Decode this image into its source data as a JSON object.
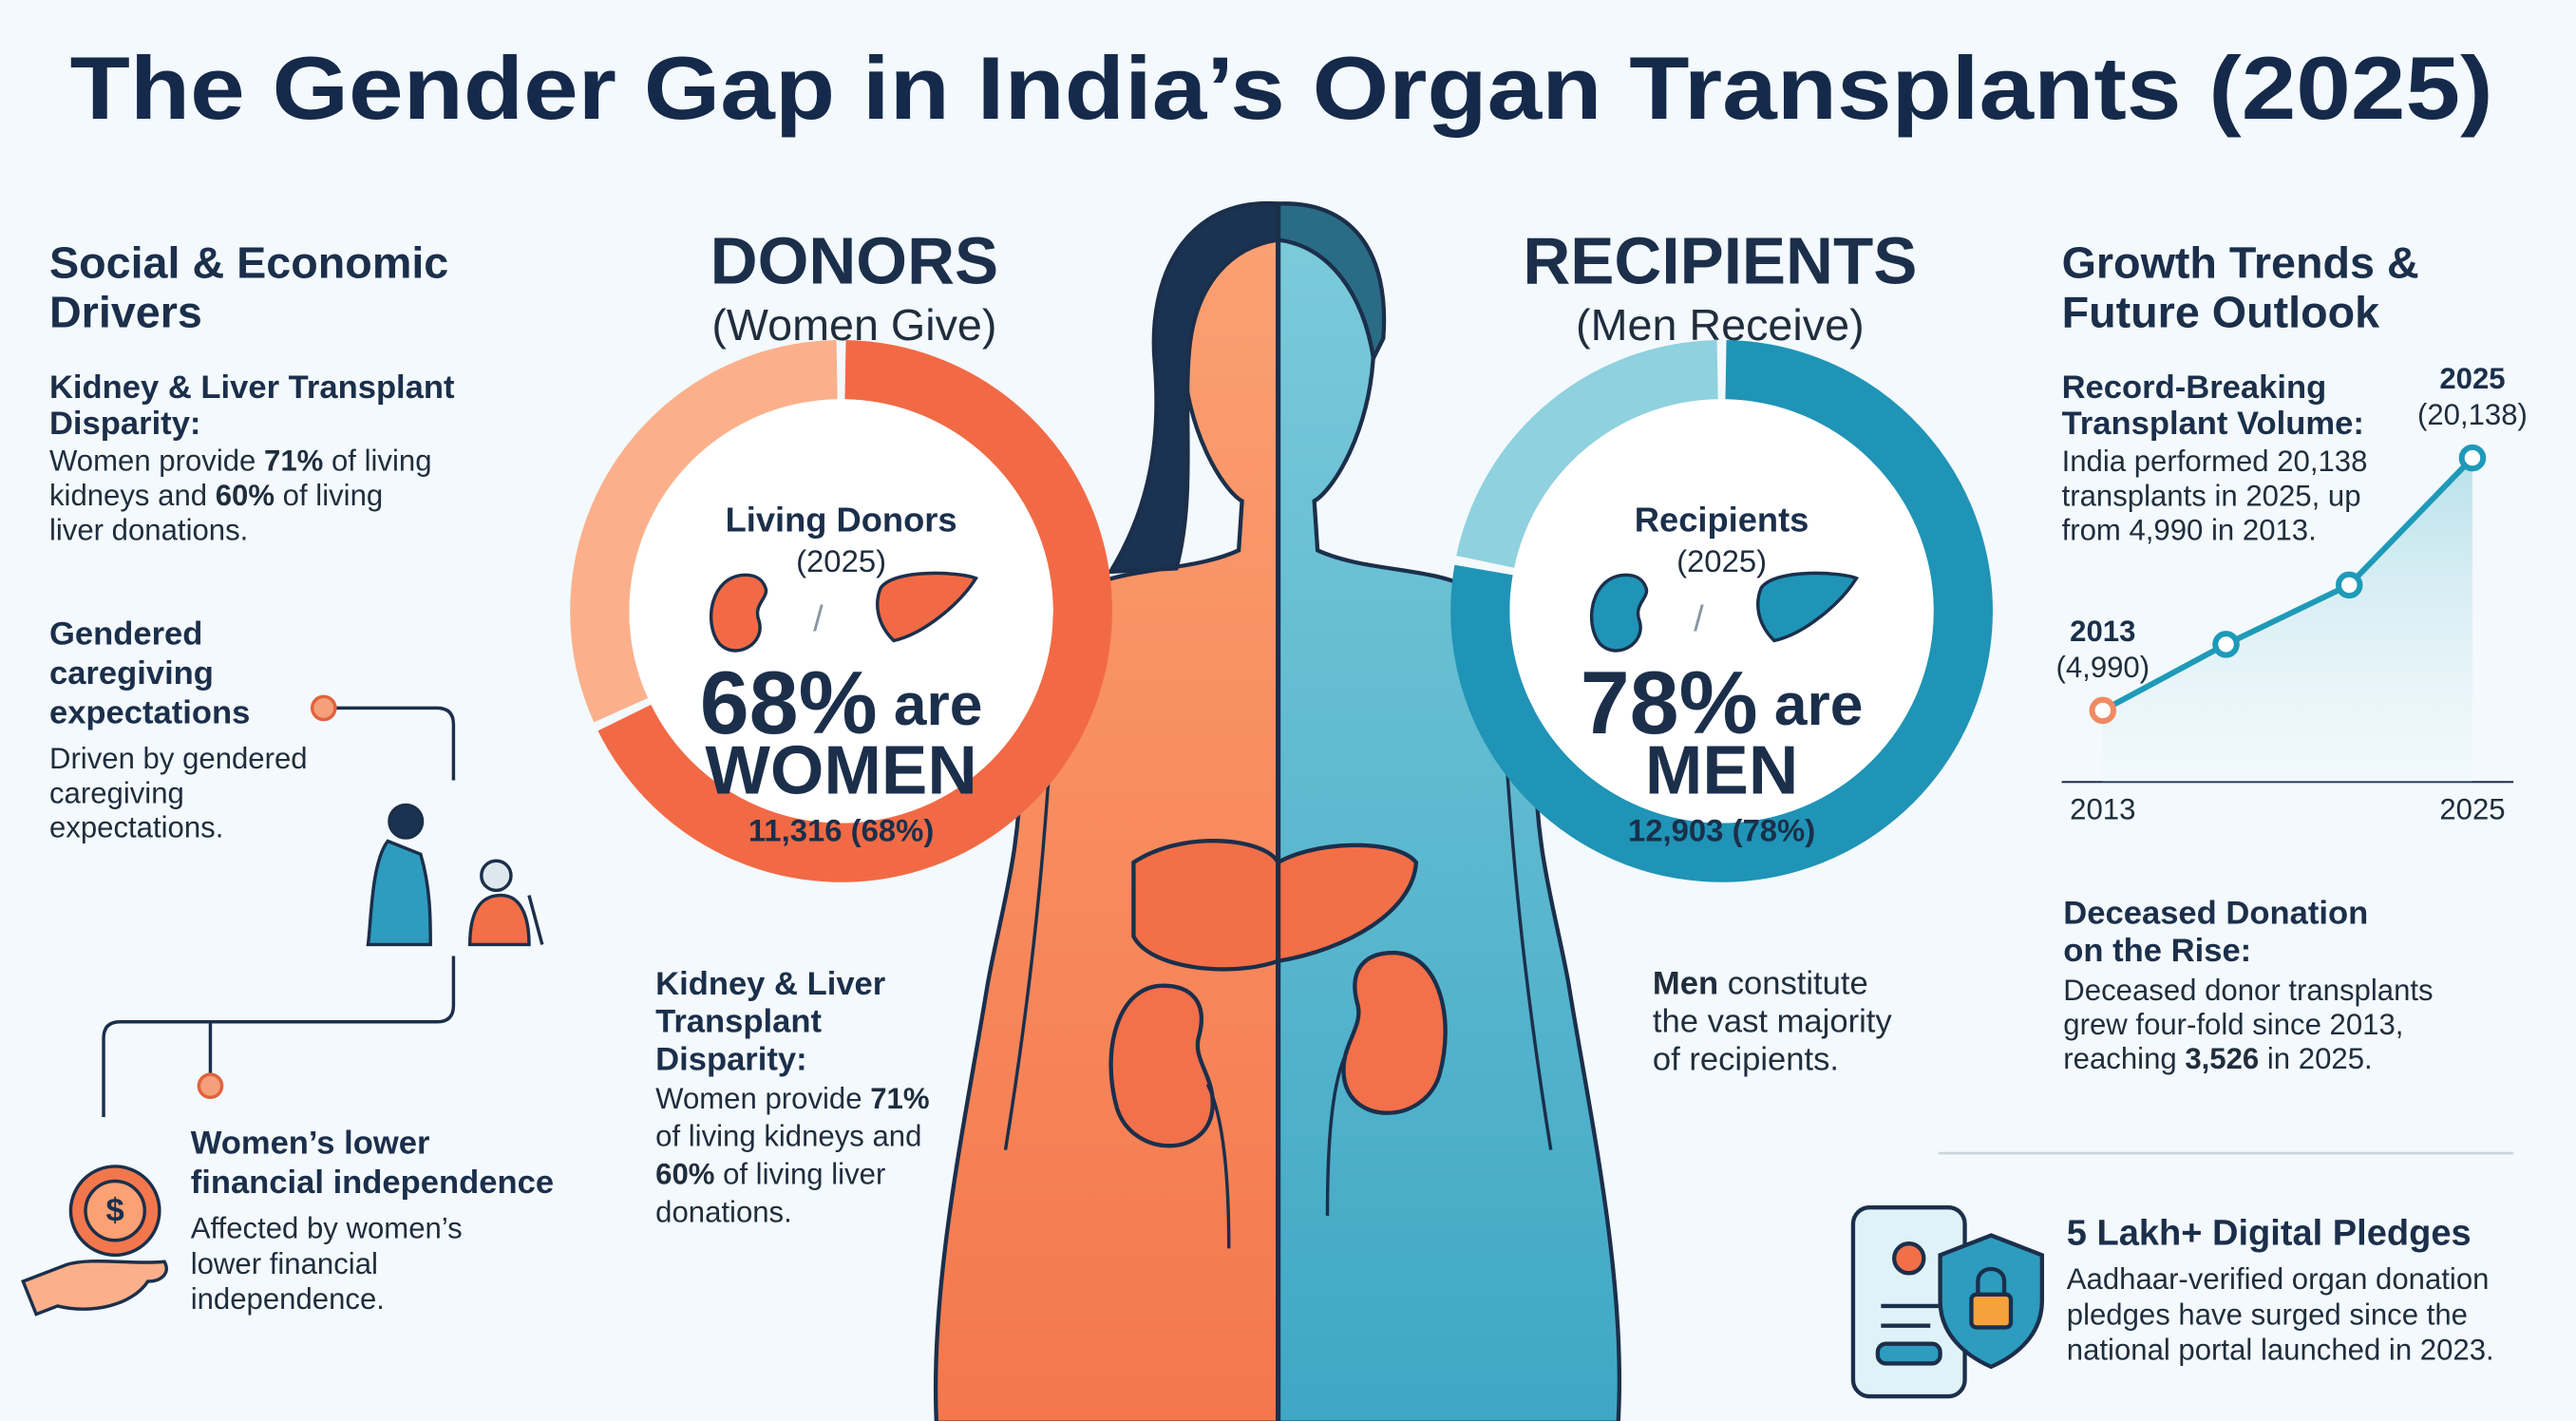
{
  "title": "The Gender Gap in India’s Organ Transplants (2025)",
  "drivers": {
    "heading": [
      "Social & Economic",
      "Drivers"
    ],
    "items": [
      {
        "title": [
          "Kidney & Liver Transplant",
          "Disparity:"
        ],
        "text": [
          [
            "Women provide ",
            {
              "bold": "71%"
            },
            " of living"
          ],
          [
            "kidneys and ",
            {
              "bold": "60%"
            },
            " of living"
          ],
          "liver donations."
        ]
      },
      {
        "title": [
          "Gendered",
          "caregiving",
          "expectations"
        ],
        "text": [
          "Driven by gendered",
          "caregiving",
          "expectations."
        ]
      },
      {
        "title": [
          "Women’s lower",
          "financial independence"
        ],
        "text": [
          "Affected by women’s",
          "lower financial",
          "independence."
        ]
      }
    ]
  },
  "donors": {
    "heading": "DONORS",
    "subheading": "(Women Give)",
    "chart": {
      "type": "donut",
      "label": "Living Donors",
      "year": "(2025)",
      "icon_separator": "/",
      "share": 68,
      "share_label": "68%",
      "connector": "are",
      "group": "WOMEN",
      "count_label": "11,316 (68%)",
      "colors": [
        "#f26a45",
        "#fbb08b"
      ]
    },
    "note": {
      "title": [
        "Kidney & Liver",
        "Transplant",
        "Disparity:"
      ],
      "text": [
        [
          "Women provide ",
          {
            "bold": "71%"
          }
        ],
        "of living kidneys and",
        [
          {
            "bold": "60%"
          },
          " of living liver"
        ],
        "donations."
      ]
    }
  },
  "recipients": {
    "heading": "RECIPIENTS",
    "subheading": "(Men Receive)",
    "chart": {
      "type": "donut",
      "label": "Recipients",
      "year": "(2025)",
      "icon_separator": "/",
      "share": 78,
      "share_label": "78%",
      "connector": "are",
      "group": "MEN",
      "count_label": "12,903 (78%)",
      "colors": [
        "#1f94b6",
        "#8fd1de"
      ]
    },
    "note": {
      "text": [
        [
          {
            "bold": "Men"
          },
          " constitute"
        ],
        "the vast majority",
        "of recipients."
      ]
    }
  },
  "growth": {
    "heading": [
      "Growth Trends &",
      "Future Outlook"
    ],
    "record": {
      "title": [
        "Record-Breaking",
        "Transplant Volume:"
      ],
      "text": [
        "India performed 20,138",
        "transplants in 2025, up",
        "from 4,990 in 2013."
      ]
    },
    "chart": {
      "type": "line",
      "categories": [
        "2013",
        null,
        null,
        "2025"
      ],
      "values": [
        4990,
        8955,
        12513,
        20138
      ],
      "value_labels": [
        "(4,990)",
        null,
        null,
        "(20,138)"
      ],
      "ylim": [
        700,
        21000
      ],
      "color": "#1e9ab8",
      "highlight_color": "#f08a62"
    },
    "deceased": {
      "title": [
        "Deceased Donation",
        "on the Rise:"
      ],
      "text": [
        "Deceased donor transplants",
        "grew four-fold since 2013,",
        [
          "reaching ",
          {
            "bold": "3,526"
          },
          " in 2025."
        ]
      ]
    },
    "pledges": {
      "title": [
        "5 Lakh+ Digital Pledges"
      ],
      "text": [
        "Aadhaar-verified organ donation",
        "pledges have surged since the",
        "national portal launched in 2023."
      ]
    }
  }
}
